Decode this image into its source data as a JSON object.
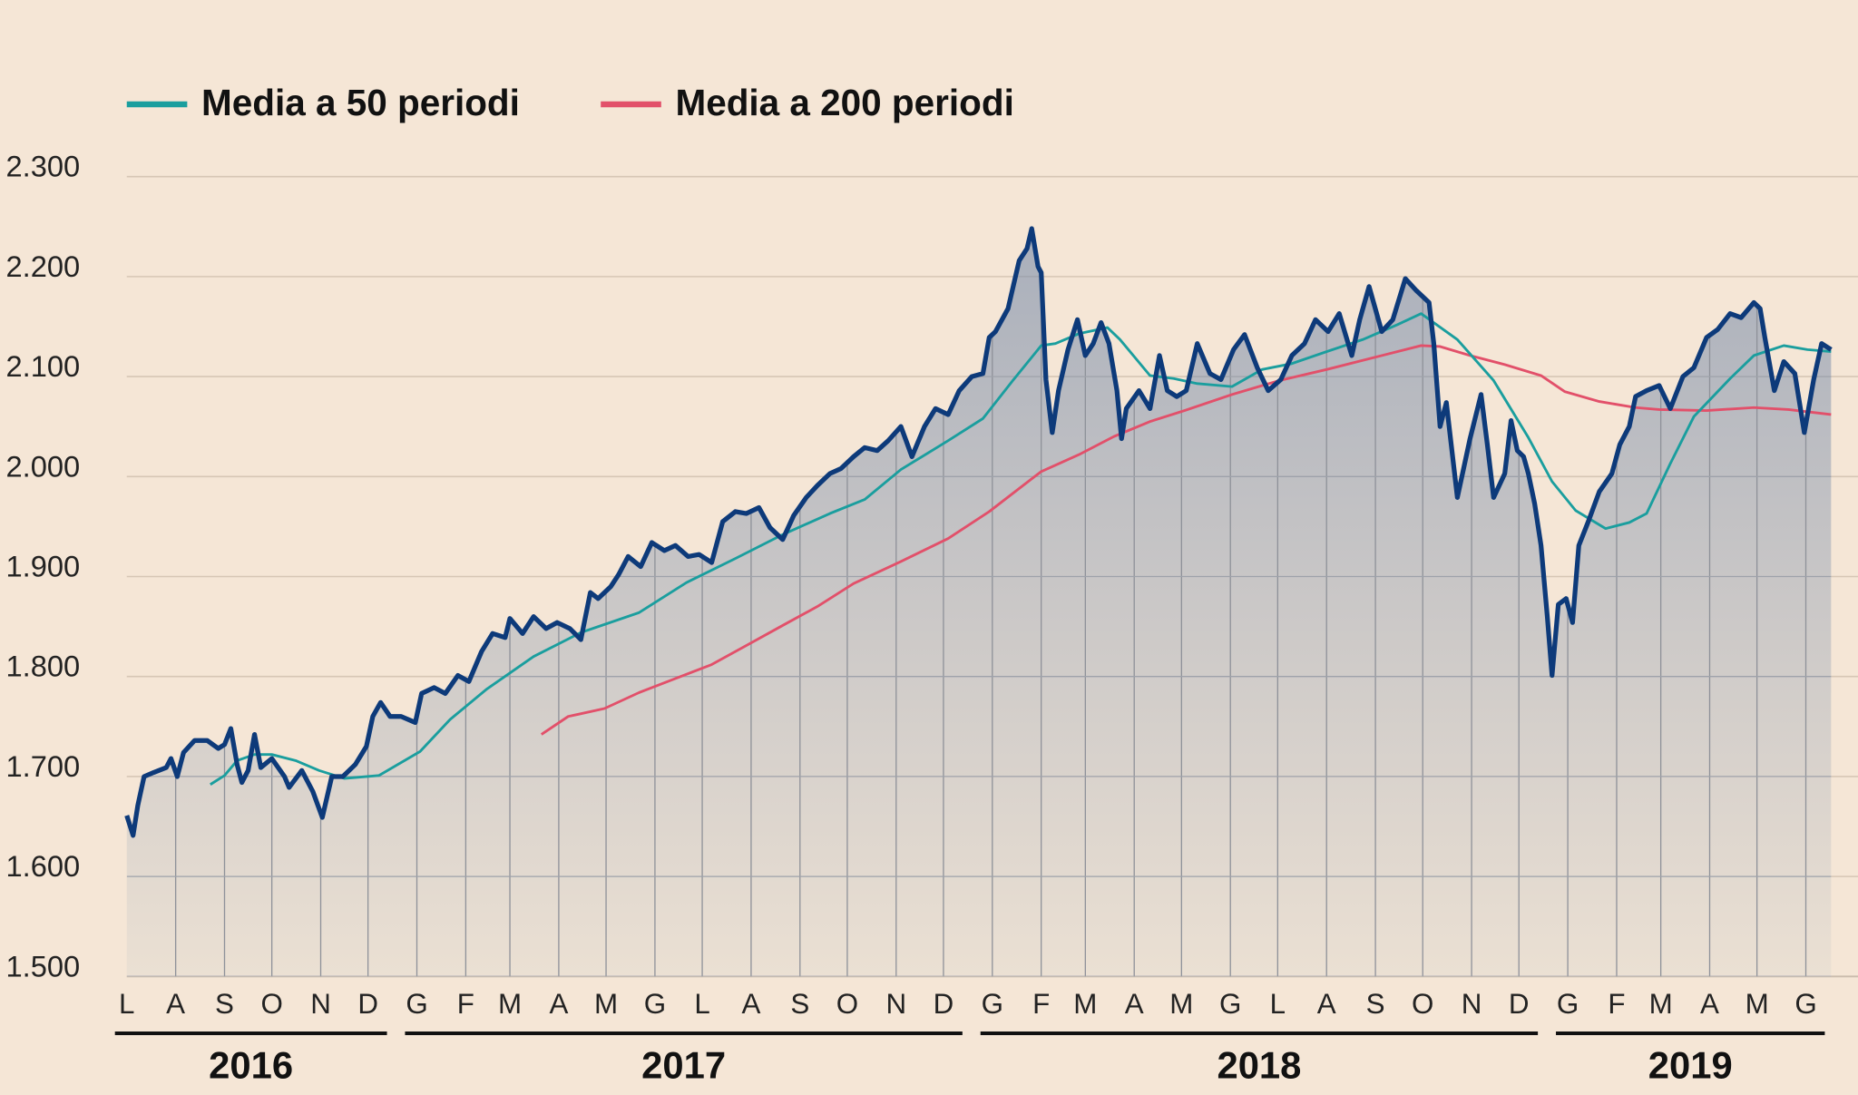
{
  "chart_data": {
    "type": "area",
    "title": "",
    "xlabel": "",
    "ylabel": "",
    "ylim": [
      1500,
      2300
    ],
    "yticks": [
      1500,
      1600,
      1700,
      1800,
      1900,
      2000,
      2100,
      2200,
      2300
    ],
    "ytick_labels": [
      "1.500",
      "1.600",
      "1.700",
      "1.800",
      "1.900",
      "2.000",
      "2.100",
      "2.200",
      "2.300"
    ],
    "xlim": [
      "2016-07-01",
      "2019-06-17"
    ],
    "month_labels": [
      "L",
      "A",
      "S",
      "O",
      "N",
      "D",
      "G",
      "F",
      "M",
      "A",
      "M",
      "G",
      "L",
      "A",
      "S",
      "O",
      "N",
      "D",
      "G",
      "F",
      "M",
      "A",
      "M",
      "G",
      "L",
      "A",
      "S",
      "O",
      "N",
      "D",
      "G",
      "F",
      "M",
      "A",
      "M",
      "G"
    ],
    "years": [
      "2016",
      "2017",
      "2018",
      "2019"
    ],
    "grid": true,
    "legend_position": "top-left",
    "colors": {
      "price": "#0d3a7a",
      "ma50": "#1a9e9e",
      "ma200": "#e2506a",
      "background": "#f5e6d6",
      "fill_top": "#a9afbb",
      "fill_bottom": "#ebe0d3"
    },
    "series": [
      {
        "key": "price",
        "points": [
          [
            "2016-07-01",
            1661
          ],
          [
            "2016-07-05",
            1641
          ],
          [
            "2016-07-08",
            1671
          ],
          [
            "2016-07-12",
            1700
          ],
          [
            "2016-07-18",
            1704
          ],
          [
            "2016-07-26",
            1709
          ],
          [
            "2016-07-29",
            1718
          ],
          [
            "2016-08-02",
            1700
          ],
          [
            "2016-08-06",
            1724
          ],
          [
            "2016-08-13",
            1736
          ],
          [
            "2016-08-21",
            1736
          ],
          [
            "2016-08-28",
            1728
          ],
          [
            "2016-09-01",
            1732
          ],
          [
            "2016-09-05",
            1748
          ],
          [
            "2016-09-09",
            1712
          ],
          [
            "2016-09-12",
            1694
          ],
          [
            "2016-09-16",
            1706
          ],
          [
            "2016-09-20",
            1742
          ],
          [
            "2016-09-24",
            1709
          ],
          [
            "2016-10-01",
            1718
          ],
          [
            "2016-10-09",
            1700
          ],
          [
            "2016-10-12",
            1689
          ],
          [
            "2016-10-20",
            1706
          ],
          [
            "2016-10-27",
            1685
          ],
          [
            "2016-11-02",
            1659
          ],
          [
            "2016-11-08",
            1700
          ],
          [
            "2016-11-15",
            1700
          ],
          [
            "2016-11-23",
            1712
          ],
          [
            "2016-11-30",
            1730
          ],
          [
            "2016-12-04",
            1760
          ],
          [
            "2016-12-09",
            1774
          ],
          [
            "2016-12-15",
            1760
          ],
          [
            "2016-12-22",
            1760
          ],
          [
            "2016-12-31",
            1754
          ],
          [
            "2017-01-04",
            1783
          ],
          [
            "2017-01-12",
            1789
          ],
          [
            "2017-01-19",
            1783
          ],
          [
            "2017-01-27",
            1801
          ],
          [
            "2017-02-03",
            1795
          ],
          [
            "2017-02-11",
            1825
          ],
          [
            "2017-02-18",
            1843
          ],
          [
            "2017-02-26",
            1839
          ],
          [
            "2017-03-01",
            1858
          ],
          [
            "2017-03-09",
            1843
          ],
          [
            "2017-03-16",
            1860
          ],
          [
            "2017-03-24",
            1848
          ],
          [
            "2017-03-31",
            1854
          ],
          [
            "2017-04-08",
            1848
          ],
          [
            "2017-04-15",
            1837
          ],
          [
            "2017-04-21",
            1884
          ],
          [
            "2017-04-26",
            1878
          ],
          [
            "2017-05-04",
            1890
          ],
          [
            "2017-05-09",
            1902
          ],
          [
            "2017-05-15",
            1920
          ],
          [
            "2017-05-23",
            1910
          ],
          [
            "2017-05-30",
            1934
          ],
          [
            "2017-06-07",
            1926
          ],
          [
            "2017-06-14",
            1931
          ],
          [
            "2017-06-22",
            1920
          ],
          [
            "2017-06-29",
            1922
          ],
          [
            "2017-07-07",
            1914
          ],
          [
            "2017-07-14",
            1955
          ],
          [
            "2017-07-22",
            1965
          ],
          [
            "2017-07-29",
            1963
          ],
          [
            "2017-08-06",
            1969
          ],
          [
            "2017-08-13",
            1949
          ],
          [
            "2017-08-21",
            1937
          ],
          [
            "2017-08-28",
            1961
          ],
          [
            "2017-09-05",
            1979
          ],
          [
            "2017-09-12",
            1991
          ],
          [
            "2017-09-20",
            2003
          ],
          [
            "2017-09-27",
            2008
          ],
          [
            "2017-10-05",
            2020
          ],
          [
            "2017-10-12",
            2029
          ],
          [
            "2017-10-20",
            2026
          ],
          [
            "2017-10-27",
            2036
          ],
          [
            "2017-11-04",
            2050
          ],
          [
            "2017-11-11",
            2020
          ],
          [
            "2017-11-19",
            2050
          ],
          [
            "2017-11-26",
            2068
          ],
          [
            "2017-12-04",
            2062
          ],
          [
            "2017-12-11",
            2086
          ],
          [
            "2017-12-19",
            2100
          ],
          [
            "2017-12-26",
            2103
          ],
          [
            "2017-12-30",
            2139
          ],
          [
            "2018-01-03",
            2145
          ],
          [
            "2018-01-11",
            2168
          ],
          [
            "2018-01-18",
            2216
          ],
          [
            "2018-01-23",
            2228
          ],
          [
            "2018-01-26",
            2248
          ],
          [
            "2018-01-30",
            2210
          ],
          [
            "2018-02-01",
            2204
          ],
          [
            "2018-02-04",
            2097
          ],
          [
            "2018-02-08",
            2044
          ],
          [
            "2018-02-12",
            2086
          ],
          [
            "2018-02-18",
            2127
          ],
          [
            "2018-02-24",
            2157
          ],
          [
            "2018-03-01",
            2121
          ],
          [
            "2018-03-06",
            2133
          ],
          [
            "2018-03-11",
            2154
          ],
          [
            "2018-03-16",
            2133
          ],
          [
            "2018-03-21",
            2086
          ],
          [
            "2018-03-24",
            2038
          ],
          [
            "2018-03-27",
            2068
          ],
          [
            "2018-04-04",
            2086
          ],
          [
            "2018-04-11",
            2068
          ],
          [
            "2018-04-17",
            2121
          ],
          [
            "2018-04-22",
            2086
          ],
          [
            "2018-04-28",
            2080
          ],
          [
            "2018-05-04",
            2086
          ],
          [
            "2018-05-11",
            2133
          ],
          [
            "2018-05-19",
            2103
          ],
          [
            "2018-05-26",
            2097
          ],
          [
            "2018-06-03",
            2127
          ],
          [
            "2018-06-10",
            2142
          ],
          [
            "2018-06-18",
            2109
          ],
          [
            "2018-06-25",
            2086
          ],
          [
            "2018-07-03",
            2097
          ],
          [
            "2018-07-10",
            2121
          ],
          [
            "2018-07-18",
            2133
          ],
          [
            "2018-07-25",
            2157
          ],
          [
            "2018-08-02",
            2145
          ],
          [
            "2018-08-09",
            2163
          ],
          [
            "2018-08-17",
            2121
          ],
          [
            "2018-08-22",
            2157
          ],
          [
            "2018-08-28",
            2190
          ],
          [
            "2018-09-05",
            2145
          ],
          [
            "2018-09-12",
            2157
          ],
          [
            "2018-09-20",
            2198
          ],
          [
            "2018-09-27",
            2186
          ],
          [
            "2018-10-05",
            2174
          ],
          [
            "2018-10-08",
            2133
          ],
          [
            "2018-10-12",
            2050
          ],
          [
            "2018-10-16",
            2074
          ],
          [
            "2018-10-23",
            1979
          ],
          [
            "2018-10-31",
            2038
          ],
          [
            "2018-11-07",
            2082
          ],
          [
            "2018-11-11",
            2032
          ],
          [
            "2018-11-15",
            1979
          ],
          [
            "2018-11-22",
            2003
          ],
          [
            "2018-11-26",
            2056
          ],
          [
            "2018-11-30",
            2026
          ],
          [
            "2018-12-04",
            2020
          ],
          [
            "2018-12-07",
            2003
          ],
          [
            "2018-12-11",
            1973
          ],
          [
            "2018-12-15",
            1931
          ],
          [
            "2018-12-19",
            1860
          ],
          [
            "2018-12-22",
            1801
          ],
          [
            "2018-12-26",
            1872
          ],
          [
            "2018-12-31",
            1878
          ],
          [
            "2019-01-04",
            1854
          ],
          [
            "2019-01-08",
            1931
          ],
          [
            "2019-01-14",
            1955
          ],
          [
            "2019-01-21",
            1985
          ],
          [
            "2019-01-29",
            2003
          ],
          [
            "2019-02-03",
            2032
          ],
          [
            "2019-02-09",
            2050
          ],
          [
            "2019-02-13",
            2080
          ],
          [
            "2019-02-20",
            2086
          ],
          [
            "2019-02-28",
            2091
          ],
          [
            "2019-03-07",
            2068
          ],
          [
            "2019-03-15",
            2100
          ],
          [
            "2019-03-22",
            2109
          ],
          [
            "2019-03-30",
            2139
          ],
          [
            "2019-04-06",
            2147
          ],
          [
            "2019-04-14",
            2163
          ],
          [
            "2019-04-21",
            2159
          ],
          [
            "2019-04-29",
            2174
          ],
          [
            "2019-05-03",
            2168
          ],
          [
            "2019-05-06",
            2139
          ],
          [
            "2019-05-12",
            2086
          ],
          [
            "2019-05-18",
            2115
          ],
          [
            "2019-05-25",
            2103
          ],
          [
            "2019-05-31",
            2044
          ],
          [
            "2019-06-06",
            2097
          ],
          [
            "2019-06-11",
            2133
          ],
          [
            "2019-06-17",
            2127
          ]
        ]
      },
      {
        "key": "ma50",
        "name": "Media a 50 periodi",
        "points": [
          [
            "2016-08-23",
            1692
          ],
          [
            "2016-09-01",
            1701
          ],
          [
            "2016-09-09",
            1716
          ],
          [
            "2016-09-20",
            1722
          ],
          [
            "2016-10-01",
            1722
          ],
          [
            "2016-10-16",
            1716
          ],
          [
            "2016-10-31",
            1706
          ],
          [
            "2016-11-16",
            1698
          ],
          [
            "2016-12-08",
            1701
          ],
          [
            "2017-01-03",
            1725
          ],
          [
            "2017-01-22",
            1757
          ],
          [
            "2017-02-14",
            1787
          ],
          [
            "2017-03-16",
            1820
          ],
          [
            "2017-04-15",
            1844
          ],
          [
            "2017-05-22",
            1864
          ],
          [
            "2017-06-21",
            1894
          ],
          [
            "2017-07-22",
            1918
          ],
          [
            "2017-08-21",
            1942
          ],
          [
            "2017-09-20",
            1963
          ],
          [
            "2017-10-12",
            1977
          ],
          [
            "2017-11-04",
            2007
          ],
          [
            "2017-12-04",
            2036
          ],
          [
            "2017-12-26",
            2058
          ],
          [
            "2018-01-14",
            2096
          ],
          [
            "2018-02-01",
            2131
          ],
          [
            "2018-02-10",
            2133
          ],
          [
            "2018-02-25",
            2143
          ],
          [
            "2018-03-15",
            2149
          ],
          [
            "2018-03-23",
            2137
          ],
          [
            "2018-04-11",
            2101
          ],
          [
            "2018-04-26",
            2098
          ],
          [
            "2018-05-11",
            2093
          ],
          [
            "2018-06-02",
            2090
          ],
          [
            "2018-06-21",
            2107
          ],
          [
            "2018-07-10",
            2113
          ],
          [
            "2018-08-01",
            2125
          ],
          [
            "2018-08-24",
            2137
          ],
          [
            "2018-09-15",
            2152
          ],
          [
            "2018-09-30",
            2163
          ],
          [
            "2018-10-23",
            2137
          ],
          [
            "2018-11-15",
            2096
          ],
          [
            "2018-12-07",
            2039
          ],
          [
            "2018-12-22",
            1995
          ],
          [
            "2019-01-06",
            1966
          ],
          [
            "2019-01-25",
            1948
          ],
          [
            "2019-02-09",
            1954
          ],
          [
            "2019-02-20",
            1963
          ],
          [
            "2019-03-07",
            2013
          ],
          [
            "2019-03-22",
            2060
          ],
          [
            "2019-04-14",
            2098
          ],
          [
            "2019-04-29",
            2121
          ],
          [
            "2019-05-18",
            2131
          ],
          [
            "2019-06-02",
            2127
          ],
          [
            "2019-06-17",
            2125
          ]
        ]
      },
      {
        "key": "ma200",
        "name": "Media a 200 periodi",
        "points": [
          [
            "2017-03-21",
            1742
          ],
          [
            "2017-04-07",
            1760
          ],
          [
            "2017-04-30",
            1768
          ],
          [
            "2017-05-22",
            1784
          ],
          [
            "2017-06-14",
            1798
          ],
          [
            "2017-07-07",
            1812
          ],
          [
            "2017-07-29",
            1831
          ],
          [
            "2017-08-21",
            1851
          ],
          [
            "2017-09-12",
            1870
          ],
          [
            "2017-10-05",
            1893
          ],
          [
            "2017-11-04",
            1915
          ],
          [
            "2017-12-04",
            1938
          ],
          [
            "2017-12-30",
            1965
          ],
          [
            "2018-02-01",
            2005
          ],
          [
            "2018-02-25",
            2022
          ],
          [
            "2018-03-19",
            2040
          ],
          [
            "2018-04-11",
            2055
          ],
          [
            "2018-05-03",
            2066
          ],
          [
            "2018-06-02",
            2082
          ],
          [
            "2018-07-02",
            2096
          ],
          [
            "2018-08-01",
            2107
          ],
          [
            "2018-08-31",
            2119
          ],
          [
            "2018-09-30",
            2131
          ],
          [
            "2018-10-12",
            2130
          ],
          [
            "2018-10-31",
            2121
          ],
          [
            "2018-11-22",
            2112
          ],
          [
            "2018-12-15",
            2101
          ],
          [
            "2018-12-30",
            2085
          ],
          [
            "2019-01-21",
            2075
          ],
          [
            "2019-02-13",
            2069
          ],
          [
            "2019-02-28",
            2067
          ],
          [
            "2019-03-30",
            2066
          ],
          [
            "2019-04-29",
            2069
          ],
          [
            "2019-05-21",
            2067
          ],
          [
            "2019-06-17",
            2062
          ]
        ]
      }
    ]
  }
}
